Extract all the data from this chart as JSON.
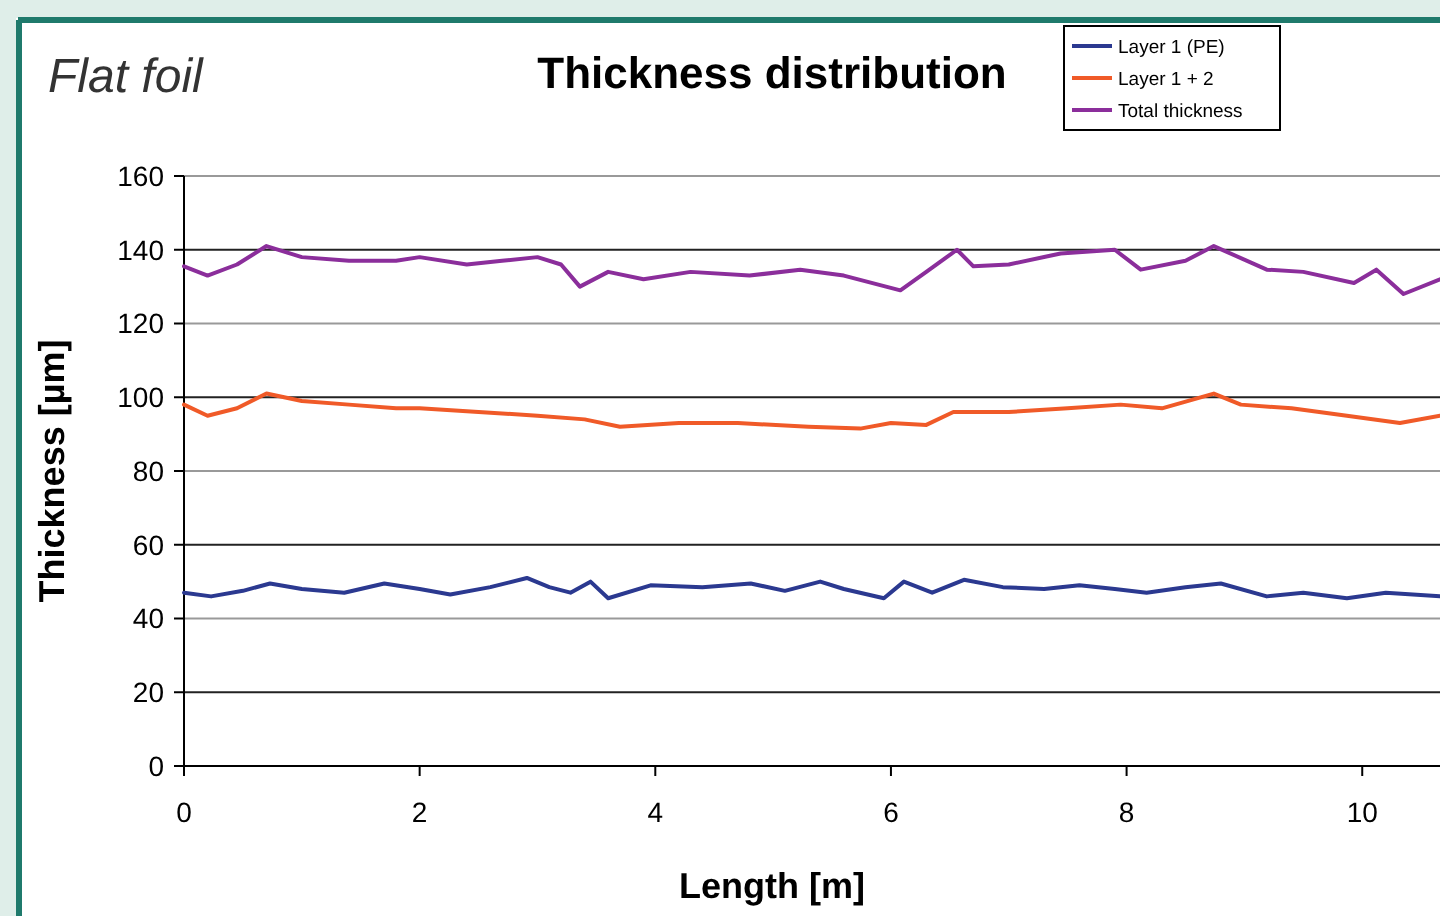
{
  "chart_data": {
    "type": "line",
    "title": "Thickness distribution",
    "subtitle": "Flat foil",
    "xlabel": "Length [m]",
    "ylabel": "Thickness [µm]",
    "xlim": [
      0,
      10.66
    ],
    "xticks": [
      0,
      2,
      4,
      6,
      8,
      10
    ],
    "ylim": [
      0,
      160
    ],
    "yticks": [
      0,
      20,
      40,
      60,
      80,
      100,
      120,
      140,
      160
    ],
    "grid": "y",
    "legend": "top right",
    "marker": "none",
    "line_style": "solid",
    "series": [
      {
        "name": "Layer 1 (PE)",
        "color": "#2b3990",
        "x": [
          0,
          0.23,
          0.5,
          0.73,
          1.0,
          1.36,
          1.7,
          2.0,
          2.26,
          2.6,
          2.91,
          3.1,
          3.28,
          3.45,
          3.6,
          3.96,
          4.4,
          4.81,
          5.1,
          5.4,
          5.6,
          5.94,
          6.11,
          6.35,
          6.62,
          6.95,
          7.3,
          7.6,
          7.9,
          8.17,
          8.5,
          8.8,
          9.19,
          9.5,
          9.87,
          10.2,
          10.66
        ],
        "values": [
          47,
          46,
          47.5,
          49.5,
          48,
          47,
          49.5,
          48,
          46.5,
          48.5,
          51,
          48.5,
          47,
          50,
          45.5,
          49,
          48.5,
          49.5,
          47.5,
          50,
          48,
          45.5,
          50,
          47,
          50.5,
          48.5,
          48,
          49,
          48,
          47,
          48.5,
          49.5,
          46,
          47,
          45.5,
          47,
          46
        ]
      },
      {
        "name": "Layer 1 + 2",
        "color": "#f05a28",
        "x": [
          0,
          0.2,
          0.45,
          0.7,
          1.0,
          1.4,
          1.8,
          2.0,
          2.5,
          3.0,
          3.4,
          3.7,
          4.2,
          4.7,
          5.3,
          5.74,
          6.0,
          6.3,
          6.53,
          7.0,
          7.5,
          7.95,
          8.3,
          8.74,
          8.97,
          9.4,
          9.87,
          10.32,
          10.66
        ],
        "values": [
          98,
          95,
          97,
          101,
          99,
          98,
          97,
          97,
          96,
          95,
          94,
          92,
          93,
          93,
          92,
          91.5,
          93,
          92.5,
          96,
          96,
          97,
          98,
          97,
          101,
          98,
          97,
          95,
          93,
          95
        ]
      },
      {
        "name": "Total thickness",
        "color": "#8b2e9b",
        "x": [
          0,
          0.2,
          0.45,
          0.7,
          1.0,
          1.4,
          1.8,
          2.0,
          2.4,
          2.7,
          3.0,
          3.2,
          3.36,
          3.6,
          3.9,
          4.3,
          4.8,
          5.23,
          5.6,
          6.08,
          6.3,
          6.56,
          6.7,
          7.0,
          7.44,
          7.9,
          8.12,
          8.5,
          8.74,
          9.19,
          9.5,
          9.93,
          10.12,
          10.35,
          10.66
        ],
        "values": [
          135.5,
          133,
          136,
          141,
          138,
          137,
          137,
          138,
          136,
          137,
          138,
          136,
          130,
          134,
          132,
          134,
          133,
          134.6,
          133,
          129,
          134,
          140,
          135.5,
          136,
          139,
          140,
          134.6,
          137,
          141,
          134.6,
          134,
          131,
          134.6,
          128,
          132
        ]
      }
    ]
  }
}
